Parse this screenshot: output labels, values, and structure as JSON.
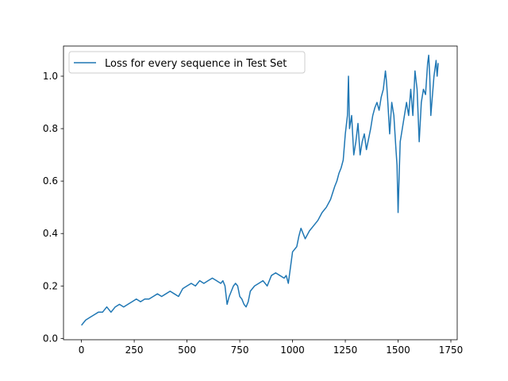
{
  "chart_data": {
    "type": "line",
    "title": "",
    "xlabel": "",
    "ylabel": "",
    "xlim": [
      -85,
      1780
    ],
    "ylim": [
      -0.005,
      1.115
    ],
    "xticks": [
      0,
      250,
      500,
      750,
      1000,
      1250,
      1500,
      1750
    ],
    "xtick_labels": [
      "0",
      "250",
      "500",
      "750",
      "1000",
      "1250",
      "1500",
      "1750"
    ],
    "yticks": [
      0.0,
      0.2,
      0.4,
      0.6,
      0.8,
      1.0
    ],
    "ytick_labels": [
      "0.0",
      "0.2",
      "0.4",
      "0.6",
      "0.8",
      "1.0"
    ],
    "grid": false,
    "legend_position": "top-left",
    "series": [
      {
        "name": "Loss for every sequence in Test Set",
        "color": "#1f77b4",
        "x": [
          0,
          20,
          40,
          60,
          80,
          100,
          120,
          140,
          160,
          180,
          200,
          220,
          240,
          260,
          280,
          300,
          320,
          340,
          360,
          380,
          400,
          420,
          440,
          460,
          480,
          500,
          520,
          540,
          560,
          580,
          600,
          620,
          640,
          660,
          670,
          680,
          690,
          700,
          710,
          720,
          730,
          740,
          750,
          760,
          770,
          780,
          790,
          800,
          820,
          840,
          860,
          880,
          900,
          920,
          940,
          960,
          970,
          980,
          1000,
          1020,
          1030,
          1040,
          1060,
          1080,
          1100,
          1120,
          1140,
          1160,
          1180,
          1200,
          1210,
          1220,
          1230,
          1240,
          1250,
          1260,
          1265,
          1270,
          1280,
          1290,
          1300,
          1310,
          1320,
          1330,
          1340,
          1350,
          1360,
          1370,
          1380,
          1390,
          1400,
          1410,
          1420,
          1430,
          1440,
          1445,
          1450,
          1460,
          1470,
          1480,
          1490,
          1495,
          1500,
          1505,
          1510,
          1520,
          1530,
          1540,
          1550,
          1560,
          1570,
          1580,
          1590,
          1600,
          1610,
          1620,
          1630,
          1640,
          1645,
          1650,
          1655,
          1660,
          1670,
          1680,
          1685,
          1690
        ],
        "y": [
          0.05,
          0.07,
          0.08,
          0.09,
          0.1,
          0.1,
          0.12,
          0.1,
          0.12,
          0.13,
          0.12,
          0.13,
          0.14,
          0.15,
          0.14,
          0.15,
          0.15,
          0.16,
          0.17,
          0.16,
          0.17,
          0.18,
          0.17,
          0.16,
          0.19,
          0.2,
          0.21,
          0.2,
          0.22,
          0.21,
          0.22,
          0.23,
          0.22,
          0.21,
          0.22,
          0.2,
          0.13,
          0.16,
          0.18,
          0.2,
          0.21,
          0.2,
          0.16,
          0.15,
          0.13,
          0.12,
          0.14,
          0.18,
          0.2,
          0.21,
          0.22,
          0.2,
          0.24,
          0.25,
          0.24,
          0.23,
          0.24,
          0.21,
          0.33,
          0.35,
          0.39,
          0.42,
          0.38,
          0.41,
          0.43,
          0.45,
          0.48,
          0.5,
          0.53,
          0.58,
          0.6,
          0.63,
          0.65,
          0.68,
          0.78,
          0.85,
          1.0,
          0.8,
          0.85,
          0.7,
          0.75,
          0.82,
          0.7,
          0.75,
          0.78,
          0.72,
          0.76,
          0.8,
          0.85,
          0.88,
          0.9,
          0.87,
          0.92,
          0.95,
          1.02,
          0.98,
          0.92,
          0.78,
          0.9,
          0.85,
          0.72,
          0.66,
          0.48,
          0.62,
          0.75,
          0.8,
          0.85,
          0.9,
          0.85,
          0.95,
          0.85,
          1.02,
          0.95,
          0.75,
          0.9,
          0.95,
          0.93,
          1.05,
          1.08,
          1.0,
          0.85,
          0.9,
          1.0,
          1.06,
          1.0,
          1.05
        ]
      }
    ]
  }
}
